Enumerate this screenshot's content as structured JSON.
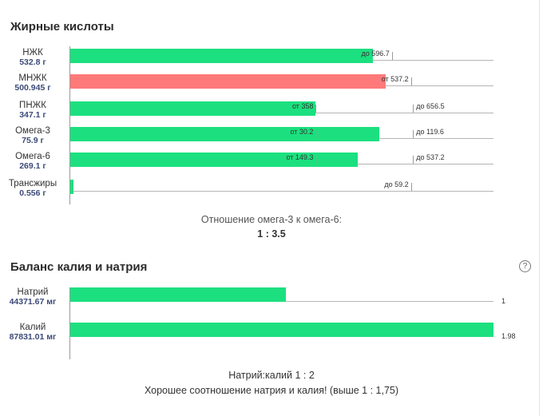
{
  "fatty_acids": {
    "title": "Жирные кислоты",
    "rows": [
      {
        "name": "НЖК",
        "amount": "532.8 г",
        "fill": 0.715,
        "color": "green",
        "marks": [
          {
            "text": "до 596.7",
            "pos": 0.76,
            "label_side": "left"
          }
        ]
      },
      {
        "name": "МНЖК",
        "amount": "500.945 г",
        "fill": 0.745,
        "color": "red",
        "marks": [
          {
            "text": "от 537.2",
            "pos": 0.805,
            "label_side": "left"
          }
        ]
      },
      {
        "name": "ПНЖК",
        "amount": "347.1 г",
        "fill": 0.58,
        "color": "green",
        "marks": [
          {
            "text": "от 358",
            "pos": 0.58,
            "label_side": "left"
          },
          {
            "text": "до 656.5",
            "pos": 0.81,
            "label_side": "right"
          }
        ]
      },
      {
        "name": "Омега-3",
        "amount": "75.9 г",
        "fill": 0.73,
        "color": "green",
        "marks": [
          {
            "text": "от 30.2",
            "pos": 0.58,
            "label_side": "left"
          },
          {
            "text": "до 119.6",
            "pos": 0.81,
            "label_side": "right"
          }
        ]
      },
      {
        "name": "Омега-6",
        "amount": "269.1 г",
        "fill": 0.68,
        "color": "green",
        "marks": [
          {
            "text": "от 149.3",
            "pos": 0.58,
            "label_side": "left"
          },
          {
            "text": "до 537.2",
            "pos": 0.81,
            "label_side": "right"
          }
        ]
      },
      {
        "name": "Трансжиры",
        "amount": "0.556 г",
        "fill": 0.007,
        "color": "green",
        "marks": [
          {
            "text": "до 59.2",
            "pos": 0.805,
            "label_side": "left"
          }
        ]
      }
    ],
    "ratio_label": "Отношение омега-3 к омега-6:",
    "ratio_value": "1 : 3.5"
  },
  "potassium_sodium": {
    "title": "Баланс калия и натрия",
    "help_icon": "question-circle-icon",
    "rows": [
      {
        "name": "Натрий",
        "amount": "44371.67 мг",
        "fill": 0.51,
        "value_label": "1"
      },
      {
        "name": "Калий",
        "amount": "87831.01 мг",
        "fill": 1.0,
        "value_label": "1.98"
      }
    ],
    "ratio_text": "Натрий:калий 1 : 2",
    "verdict": "Хорошее соотношение натрия и калия! (выше 1 : 1,75)"
  },
  "colors": {
    "green": "#1ce07f",
    "red": "#fe7a7a",
    "amount": "#3c4a78"
  }
}
